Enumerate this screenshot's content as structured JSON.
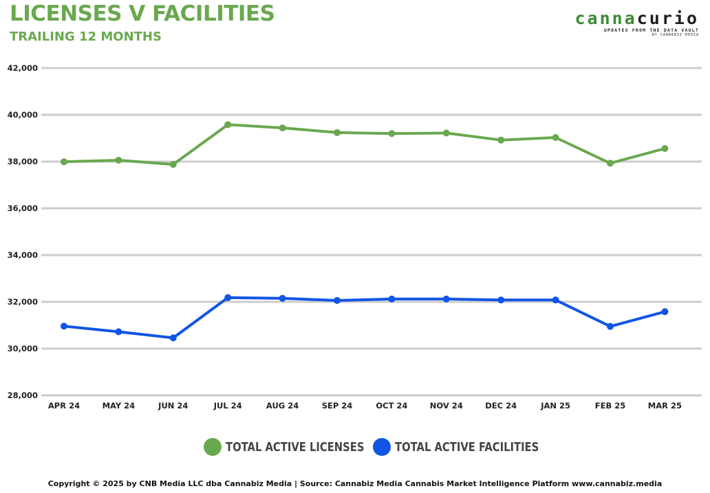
{
  "header": {
    "title": "LICENSES V FACILITIES",
    "subtitle": "TRAILING 12 MONTHS"
  },
  "logo": {
    "word_part1": "canna",
    "word_part2": "curio",
    "tagline": "UPDATES FROM THE DATA VAULT",
    "byline": "BY CANNABIZ MEDIA"
  },
  "colors": {
    "title_green": "#6aa84f",
    "licenses_line": "#6aa84f",
    "facilities_line": "#1155e6",
    "gridline": "#cccccc"
  },
  "legend": [
    {
      "label": "TOTAL ACTIVE LICENSES",
      "color": "#6aa84f"
    },
    {
      "label": "TOTAL ACTIVE FACILITIES",
      "color": "#1155e6"
    }
  ],
  "footer": {
    "text": "Copyright © 2025 by CNB Media LLC dba Cannabiz Media | Source: Cannabiz Media Cannabis Market Intelligence Platform www.cannabiz.media"
  },
  "chart_data": {
    "type": "line",
    "title": "LICENSES V FACILITIES",
    "subtitle": "TRAILING 12 MONTHS",
    "xlabel": "",
    "ylabel": "",
    "categories": [
      "APR 24",
      "MAY 24",
      "JUN 24",
      "JUL 24",
      "AUG 24",
      "SEP 24",
      "OCT 24",
      "NOV 24",
      "DEC 24",
      "JAN 25",
      "FEB 25",
      "MAR 25"
    ],
    "ylim": [
      28000,
      42000
    ],
    "yticks": [
      28000,
      30000,
      32000,
      34000,
      36000,
      38000,
      40000,
      42000
    ],
    "ytick_labels": [
      "28,000",
      "30,000",
      "32,000",
      "34,000",
      "36,000",
      "38,000",
      "40,000",
      "42,000"
    ],
    "grid": true,
    "legend_position": "bottom",
    "series": [
      {
        "name": "TOTAL ACTIVE LICENSES",
        "color": "#6aa84f",
        "values": [
          37990,
          38060,
          37880,
          39580,
          39440,
          39240,
          39200,
          39220,
          38920,
          39030,
          37930,
          38560
        ]
      },
      {
        "name": "TOTAL ACTIVE FACILITIES",
        "color": "#1155e6",
        "values": [
          30960,
          30720,
          30460,
          32180,
          32150,
          32060,
          32120,
          32120,
          32080,
          32080,
          30950,
          31580
        ]
      }
    ]
  }
}
